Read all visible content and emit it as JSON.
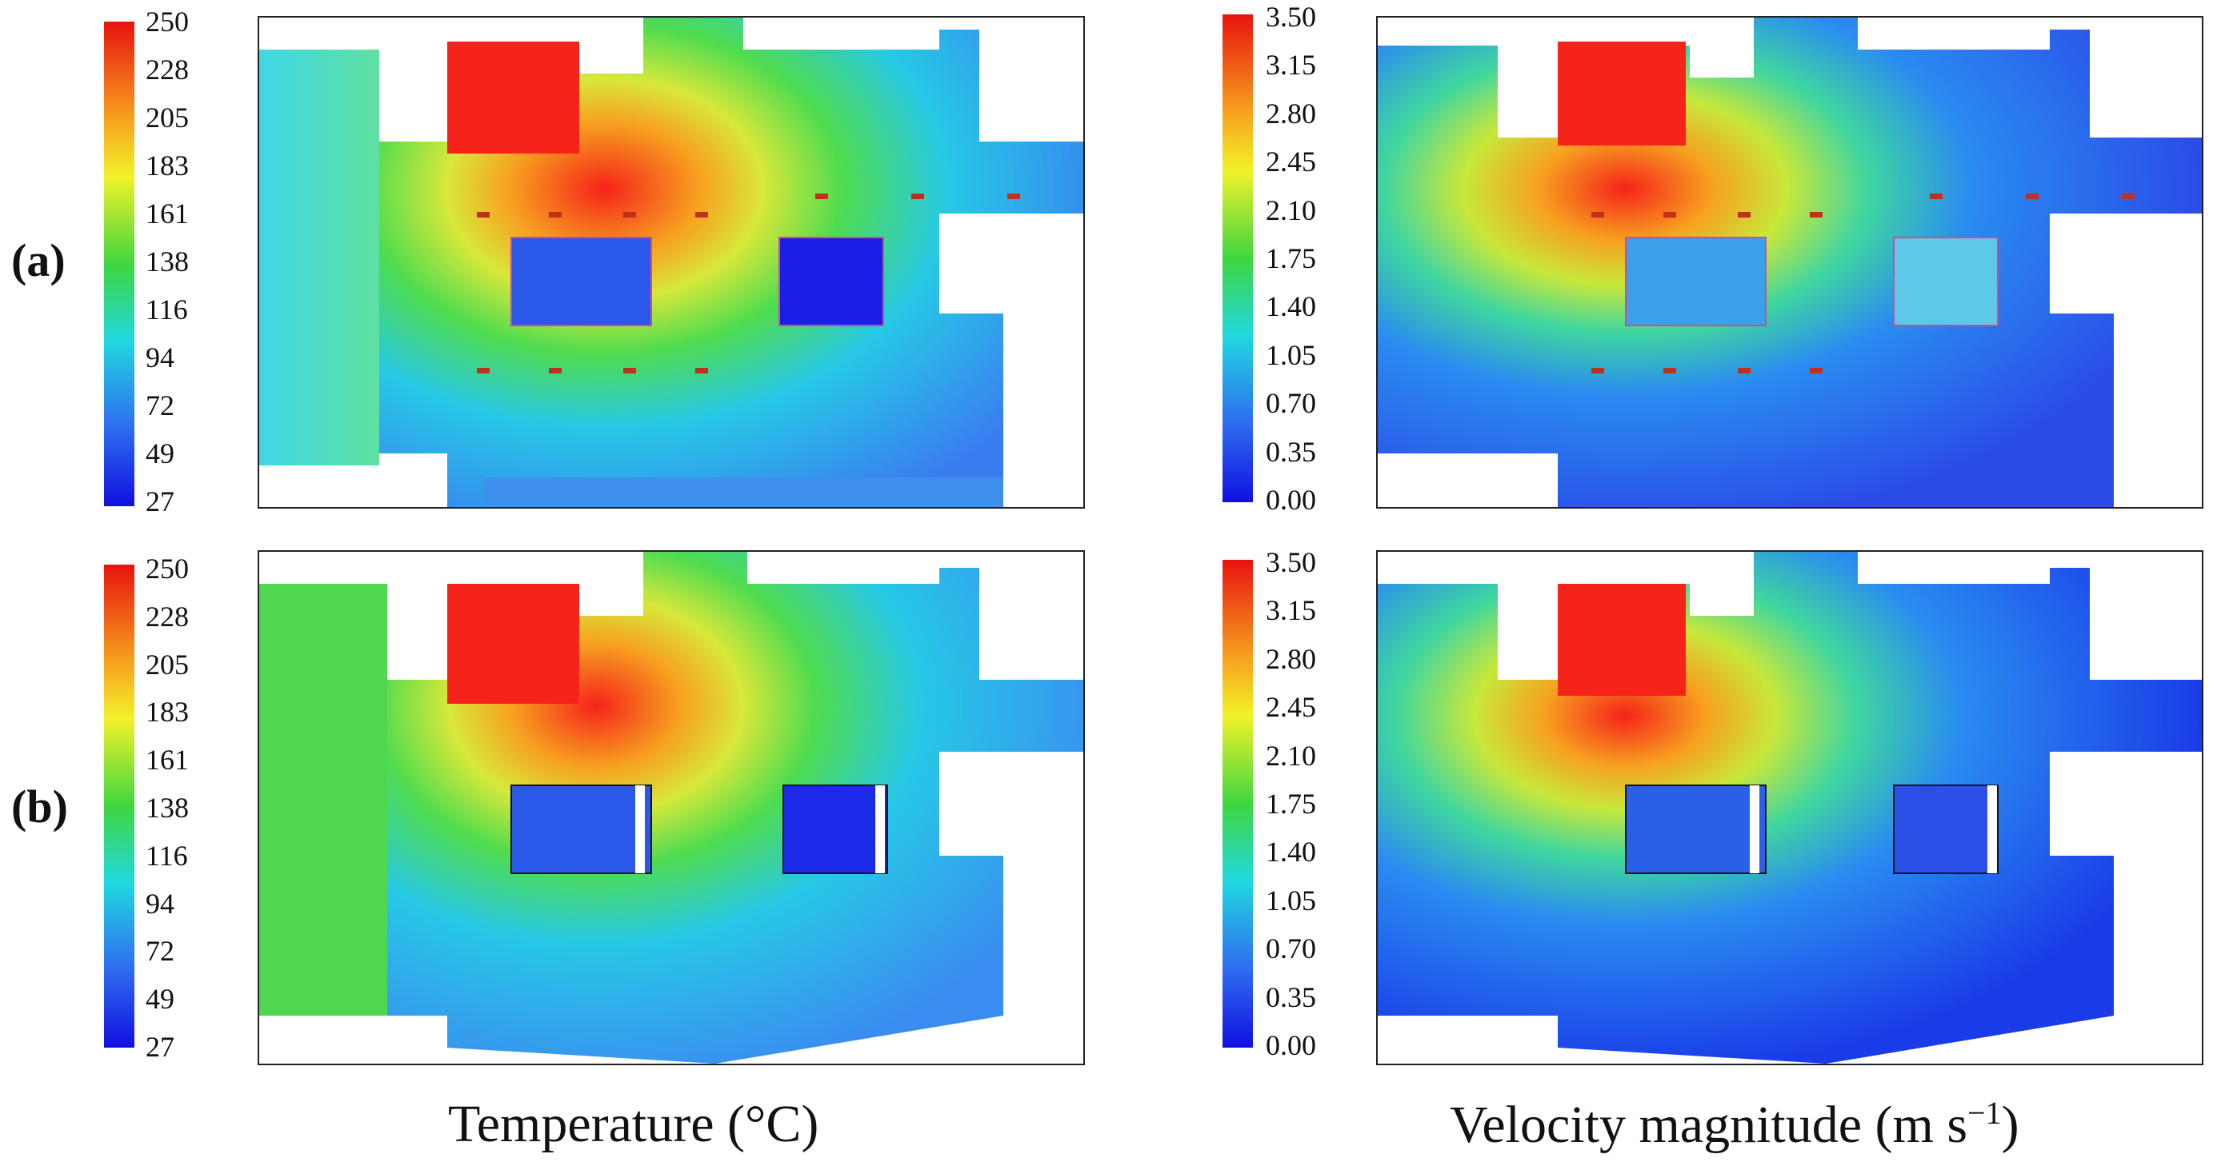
{
  "figure": {
    "rows": [
      {
        "label": "(a)"
      },
      {
        "label": "(b)"
      }
    ],
    "temperature_scale": {
      "ticks": [
        "250",
        "228",
        "205",
        "183",
        "161",
        "138",
        "116",
        "94",
        "72",
        "49",
        "27"
      ],
      "min": 27,
      "max": 250
    },
    "velocity_scale": {
      "ticks": [
        "3.50",
        "3.15",
        "2.80",
        "2.45",
        "2.10",
        "1.75",
        "1.40",
        "1.05",
        "0.70",
        "0.35",
        "0.00"
      ],
      "min": 0.0,
      "max": 3.5
    },
    "column_titles": {
      "temperature": "Temperature (°C)",
      "velocity_main": "Velocity magnitude (m s",
      "velocity_sup": "−1",
      "velocity_end": ")"
    },
    "colors": {
      "hot": "#f5231a",
      "warm": "#f7a020",
      "mid": "#4fdc4f",
      "cool": "#27d6e0",
      "cold": "#2f6af0",
      "coldest": "#1a1ee8"
    }
  }
}
